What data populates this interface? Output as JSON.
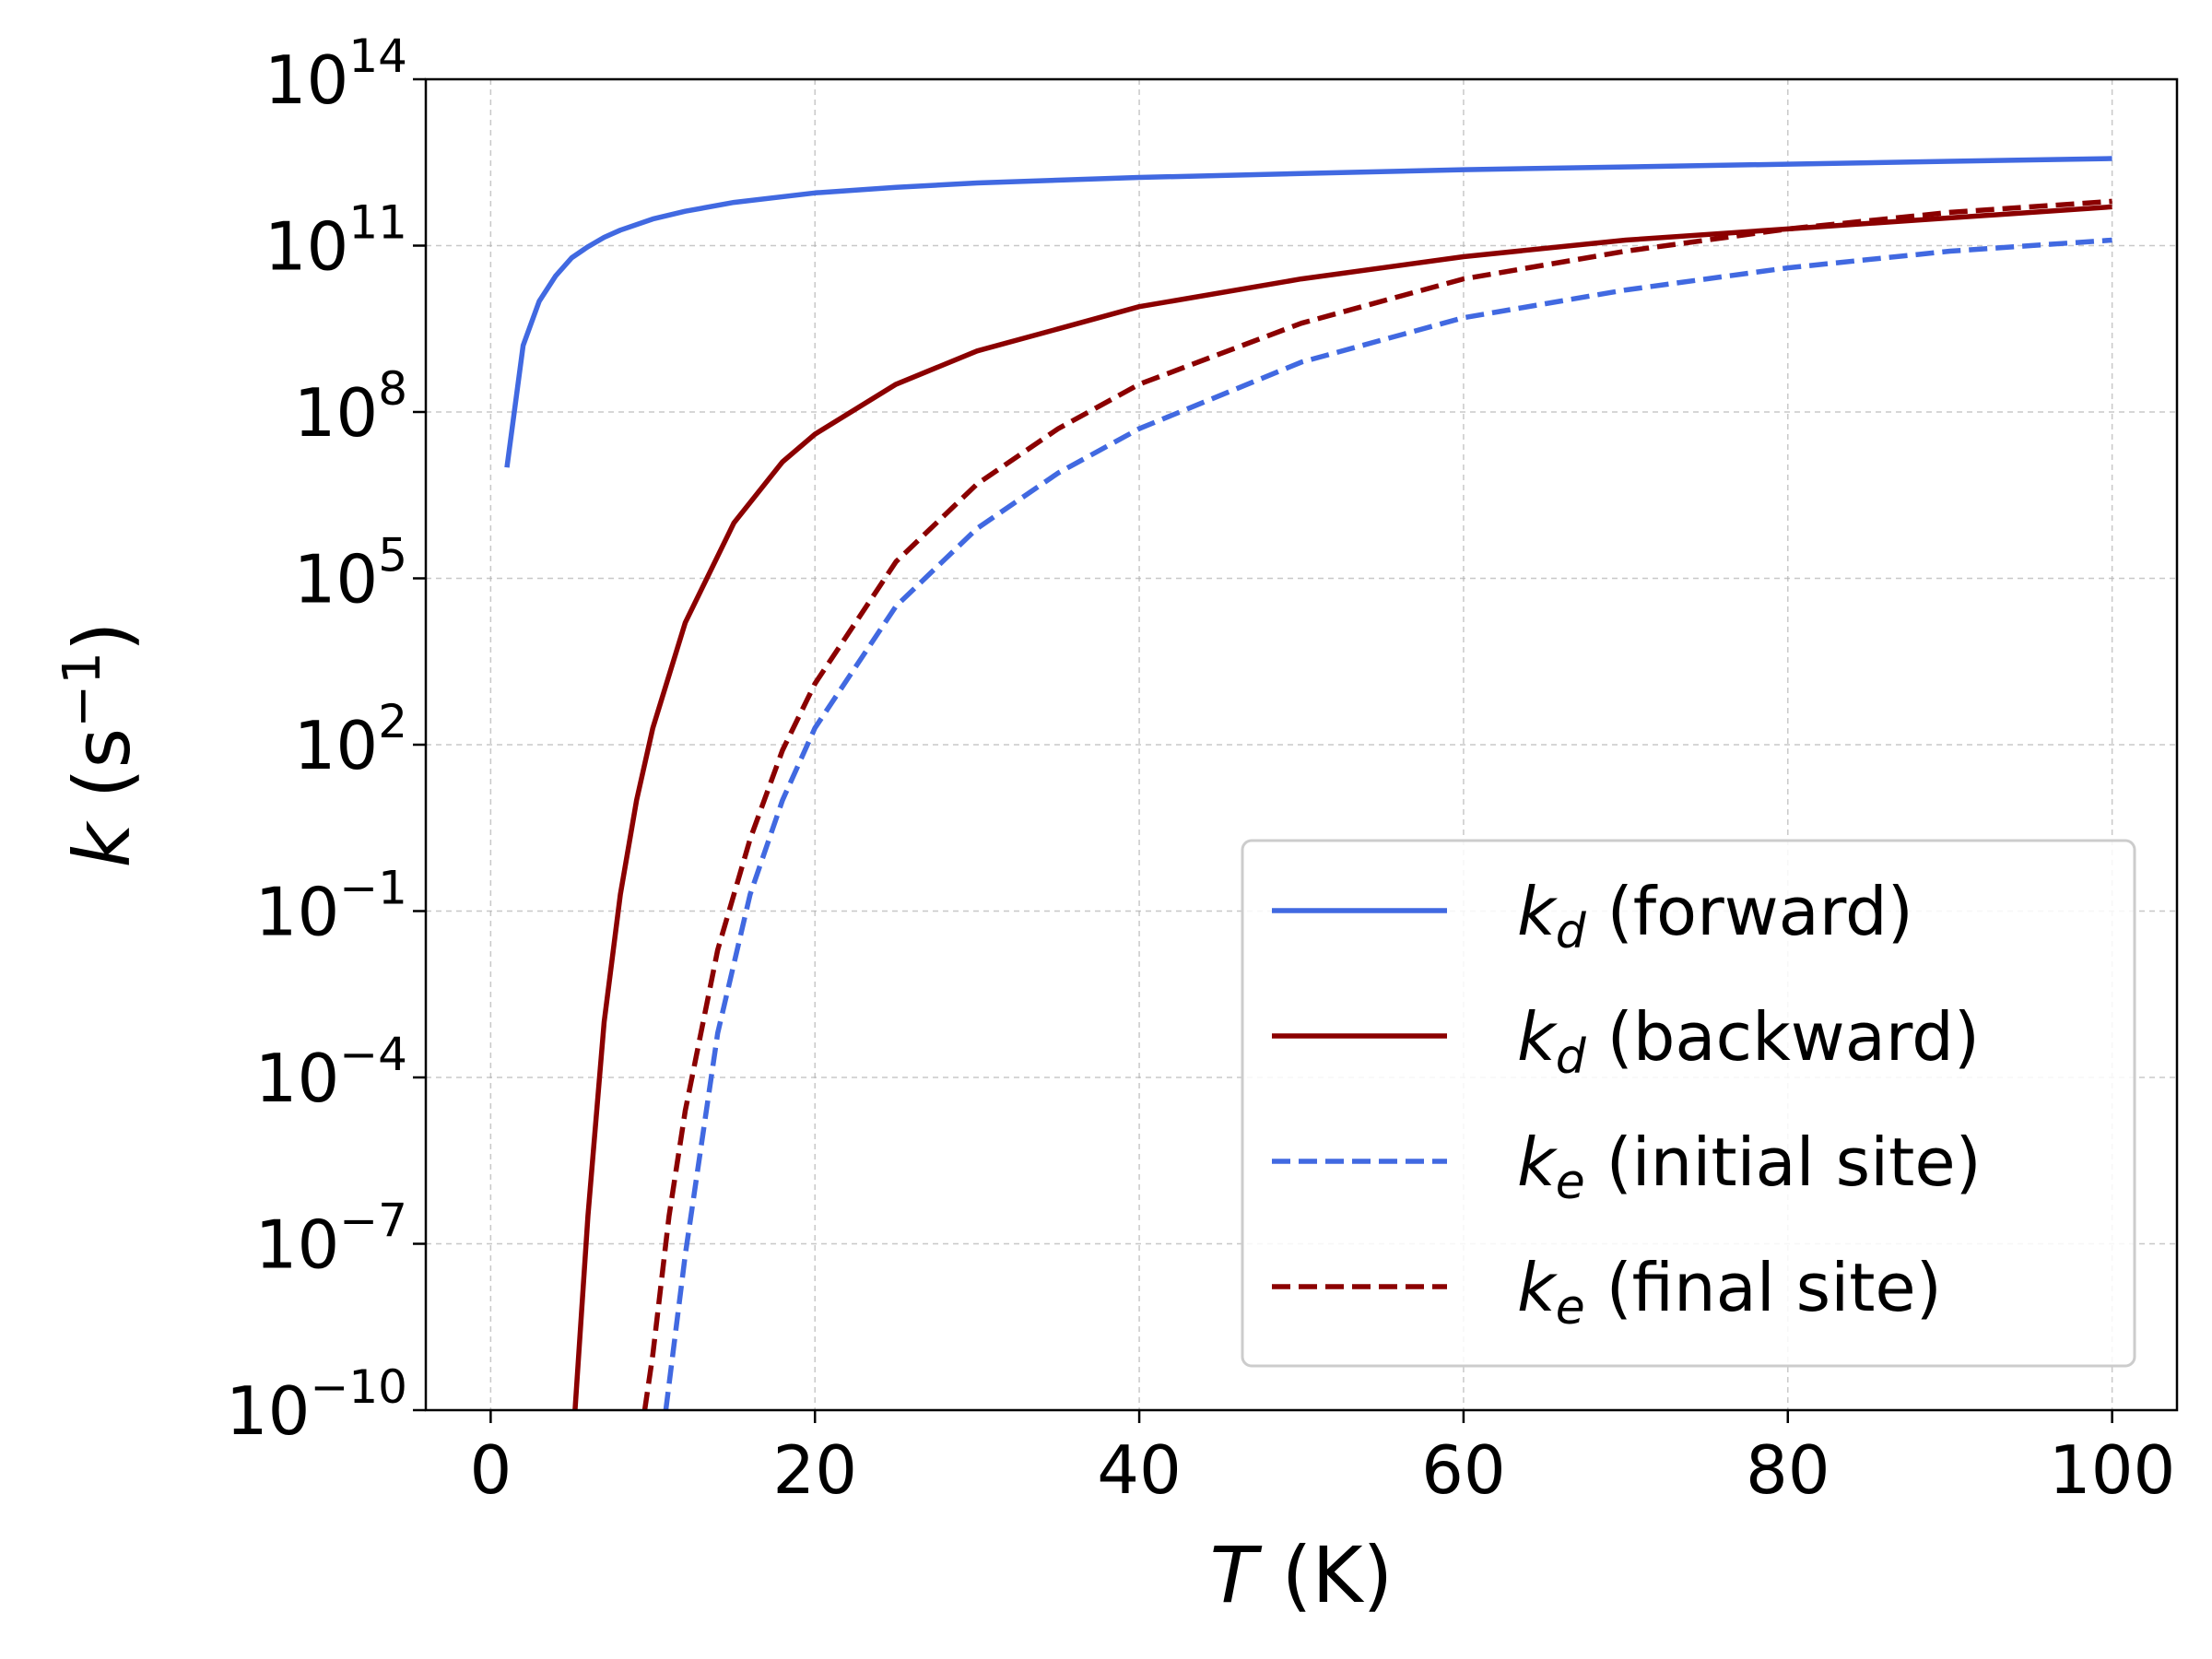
{
  "chart_data": {
    "type": "line",
    "title": "",
    "xlabel": "T (K)",
    "xlabel_parts": {
      "var": "T",
      "unit": " (K)"
    },
    "ylabel": "k (s^-1)",
    "ylabel_parts": {
      "var": "k",
      "unit_open": " (s",
      "exp": "−1",
      "unit_close": ")"
    },
    "x_scale": "linear",
    "y_scale": "log",
    "xlim": [
      -4,
      104
    ],
    "ylim": [
      -10,
      14
    ],
    "x_ticks": [
      0,
      20,
      40,
      60,
      80,
      100
    ],
    "x_tick_labels": [
      "0",
      "20",
      "40",
      "60",
      "80",
      "100"
    ],
    "y_ticks": [
      -10,
      -7,
      -4,
      -1,
      2,
      5,
      8,
      11,
      14
    ],
    "y_tick_labels": [
      {
        "base": "10",
        "exp": "−10"
      },
      {
        "base": "10",
        "exp": "−7"
      },
      {
        "base": "10",
        "exp": "−4"
      },
      {
        "base": "10",
        "exp": "−1"
      },
      {
        "base": "10",
        "exp": "2"
      },
      {
        "base": "10",
        "exp": "5"
      },
      {
        "base": "10",
        "exp": "8"
      },
      {
        "base": "10",
        "exp": "11"
      },
      {
        "base": "10",
        "exp": "14"
      }
    ],
    "grid": true,
    "legend_position": "bottom-right",
    "series": [
      {
        "name": "k_d (forward)",
        "legend": {
          "sym": "k",
          "sub": "d",
          "rest": " (forward)"
        },
        "color": "#4169e1",
        "dash": "solid",
        "x": [
          1,
          2,
          3,
          4,
          5,
          6,
          7,
          8,
          10,
          12,
          15,
          20,
          25,
          30,
          40,
          50,
          60,
          70,
          80,
          90,
          100
        ],
        "log10_y": [
          7.0,
          9.2,
          10.0,
          10.45,
          10.78,
          10.98,
          11.15,
          11.28,
          11.48,
          11.62,
          11.78,
          11.95,
          12.05,
          12.13,
          12.23,
          12.3,
          12.37,
          12.42,
          12.47,
          12.52,
          12.57
        ]
      },
      {
        "name": "k_d (backward)",
        "legend": {
          "sym": "k",
          "sub": "d",
          "rest": " (backward)"
        },
        "color": "#8b0000",
        "dash": "solid",
        "x": [
          5.2,
          6,
          7,
          8,
          9,
          10,
          12,
          15,
          18,
          20,
          25,
          30,
          35,
          40,
          50,
          60,
          70,
          80,
          90,
          100
        ],
        "log10_y": [
          -10,
          -6.5,
          -3.0,
          -0.7,
          1.0,
          2.3,
          4.2,
          6.0,
          7.1,
          7.6,
          8.5,
          9.1,
          9.5,
          9.9,
          10.4,
          10.8,
          11.1,
          11.3,
          11.5,
          11.7
        ]
      },
      {
        "name": "k_e (initial site)",
        "legend": {
          "sym": "k",
          "sub": "e",
          "rest": " (initial site)"
        },
        "color": "#4169e1",
        "dash": "dashed",
        "x": [
          10.8,
          12,
          14,
          16,
          18,
          20,
          25,
          30,
          35,
          40,
          50,
          60,
          70,
          80,
          90,
          100
        ],
        "log10_y": [
          -10,
          -7.2,
          -3.2,
          -0.7,
          1.0,
          2.3,
          4.5,
          5.9,
          6.9,
          7.7,
          8.9,
          9.7,
          10.2,
          10.6,
          10.9,
          11.1
        ]
      },
      {
        "name": "k_e (final site)",
        "legend": {
          "sym": "k",
          "sub": "e",
          "rest": " (final site)"
        },
        "color": "#8b0000",
        "dash": "dashed",
        "x": [
          9.5,
          10,
          11,
          12,
          14,
          16,
          18,
          20,
          25,
          30,
          35,
          40,
          50,
          60,
          70,
          80,
          90,
          100
        ],
        "log10_y": [
          -10,
          -9.0,
          -6.5,
          -4.6,
          -1.7,
          0.3,
          1.9,
          3.1,
          5.3,
          6.7,
          7.7,
          8.5,
          9.6,
          10.4,
          10.9,
          11.3,
          11.6,
          11.8
        ]
      }
    ]
  }
}
